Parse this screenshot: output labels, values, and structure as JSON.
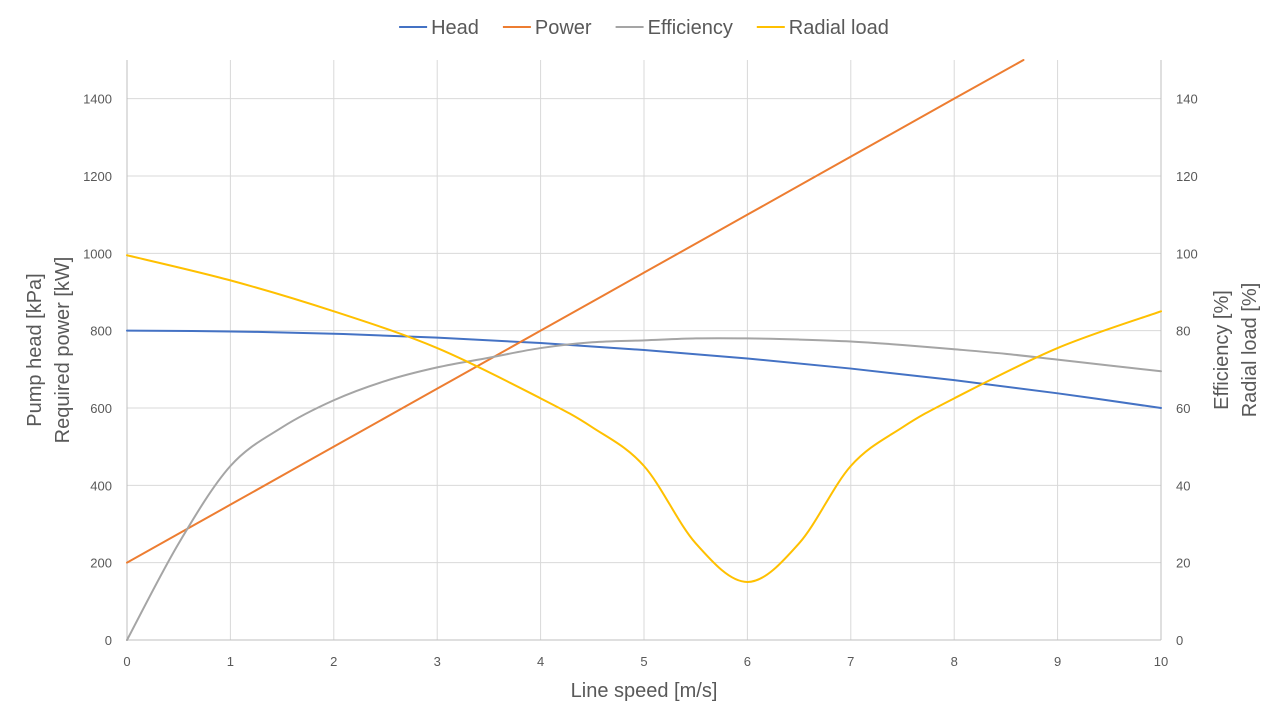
{
  "chart_data": {
    "type": "line",
    "title": "",
    "xlabel": "Line speed [m/s]",
    "ylabel_left": [
      "Pump head [kPa]",
      "Required power [kW]"
    ],
    "ylabel_right": [
      "Efficiency [%]",
      "Radial load [%]"
    ],
    "xlim": [
      0,
      10
    ],
    "ylim_left": [
      0,
      1500
    ],
    "ylim_right": [
      0,
      150
    ],
    "x_ticks": [
      0,
      1,
      2,
      3,
      4,
      5,
      6,
      7,
      8,
      9,
      10
    ],
    "y_left_ticks": [
      0,
      200,
      400,
      600,
      800,
      1000,
      1200,
      1400
    ],
    "y_right_ticks": [
      0,
      20,
      40,
      60,
      80,
      100,
      120,
      140
    ],
    "grid": true,
    "legend_position": "top",
    "series": [
      {
        "name": "Head",
        "axis": "left",
        "color": "#4472C4",
        "x": [
          0,
          1,
          2,
          3,
          4,
          5,
          6,
          7,
          8,
          9,
          10
        ],
        "y": [
          800,
          798,
          792,
          782,
          768,
          750,
          728,
          702,
          672,
          638,
          600
        ]
      },
      {
        "name": "Power",
        "axis": "left",
        "color": "#ED7D31",
        "x": [
          0,
          1,
          2,
          3,
          4,
          5,
          6,
          7,
          8,
          8.67
        ],
        "y": [
          200,
          350,
          500,
          650,
          800,
          950,
          1100,
          1250,
          1400,
          1500
        ]
      },
      {
        "name": "Efficiency",
        "axis": "right",
        "color": "#A5A5A5",
        "x": [
          0,
          0.5,
          1,
          1.5,
          2,
          2.5,
          3,
          3.5,
          4,
          4.5,
          5,
          5.5,
          6,
          6.5,
          7,
          7.5,
          8,
          8.5,
          9,
          9.5,
          10
        ],
        "y": [
          0,
          25,
          45,
          55,
          62,
          67,
          70.5,
          73,
          75.5,
          77,
          77.5,
          78,
          78,
          77.7,
          77.2,
          76.3,
          75.2,
          74,
          72.5,
          71,
          69.5
        ]
      },
      {
        "name": "Radial load",
        "axis": "right",
        "color": "#FFC000",
        "x": [
          0,
          1,
          2,
          3,
          4,
          4.5,
          5,
          5.5,
          6,
          6.5,
          7,
          7.5,
          8,
          9,
          10
        ],
        "y": [
          99.5,
          93,
          85,
          75.5,
          62.5,
          55,
          45,
          25,
          15,
          25,
          45,
          55,
          62.5,
          75.5,
          85
        ]
      }
    ]
  }
}
